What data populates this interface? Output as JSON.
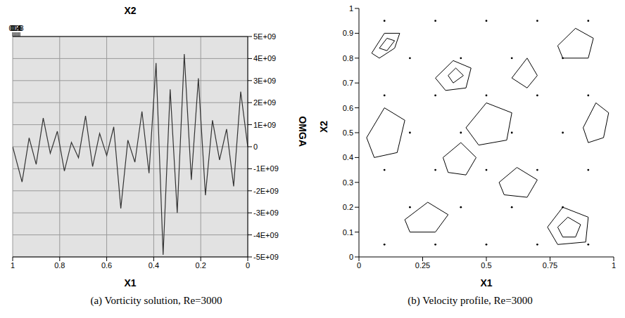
{
  "chart_data": [
    {
      "type": "line",
      "title": "(a) Vorticity solution, Re=3000",
      "x_label": "X1",
      "x2_label": "X2",
      "y_label": "OMGA",
      "xlim": [
        0,
        1
      ],
      "xticks": [
        0,
        0.2,
        0.4,
        0.6,
        0.8,
        1
      ],
      "x2lim": [
        0,
        1
      ],
      "x2ticks": [
        0,
        0.2,
        0.4,
        0.6,
        0.8,
        1
      ],
      "ylim": [
        -5000000000,
        5000000000
      ],
      "yticks": [
        {
          "value": -5000000000,
          "label": "-5E+09"
        },
        {
          "value": -4000000000,
          "label": "-4E+09"
        },
        {
          "value": -3000000000,
          "label": "-3E+09"
        },
        {
          "value": -2000000000,
          "label": "-2E+09"
        },
        {
          "value": -1000000000,
          "label": "-1E+09"
        },
        0,
        {
          "value": 1000000000,
          "label": "1E+09"
        },
        {
          "value": 2000000000,
          "label": "2E+09"
        },
        {
          "value": 3000000000,
          "label": "3E+09"
        },
        {
          "value": 4000000000,
          "label": "4E+09"
        },
        {
          "value": 5000000000,
          "label": "5E+09"
        }
      ],
      "x": [
        0,
        0.03,
        0.06,
        0.09,
        0.12,
        0.15,
        0.18,
        0.21,
        0.24,
        0.27,
        0.3,
        0.33,
        0.36,
        0.39,
        0.42,
        0.45,
        0.48,
        0.51,
        0.54,
        0.57,
        0.6,
        0.63,
        0.66,
        0.69,
        0.72,
        0.75,
        0.78,
        0.81,
        0.84,
        0.87,
        0.9,
        0.93,
        0.96,
        1
      ],
      "values": [
        0,
        2500000000,
        -1800000000,
        800000000,
        -600000000,
        1200000000,
        -2200000000,
        3100000000,
        -1500000000,
        4200000000,
        -3000000000,
        2600000000,
        -4900000000,
        3800000000,
        -1200000000,
        1600000000,
        -700000000,
        300000000,
        -2800000000,
        900000000,
        -400000000,
        600000000,
        -900000000,
        1400000000,
        -500000000,
        200000000,
        -1100000000,
        700000000,
        -300000000,
        1300000000,
        -800000000,
        400000000,
        -1600000000,
        0
      ],
      "color": "#333333",
      "grid": true
    },
    {
      "type": "scatter",
      "title": "(b) Velocity profile, Re=3000",
      "x_label": "X1",
      "y_label": "X2",
      "xlim": [
        0,
        1
      ],
      "xticks": [
        0,
        0.25,
        0.5,
        0.75,
        1
      ],
      "ylim": [
        0,
        1
      ],
      "yticks": [
        0,
        0.1,
        0.2,
        0.3,
        0.4,
        0.5,
        0.6,
        0.7,
        0.8,
        0.9,
        1
      ],
      "grid": false,
      "series": [
        {
          "type": "line",
          "color": "#000000",
          "x": [
            0.05,
            0.1,
            0.16,
            0.14,
            0.08,
            0.05
          ],
          "values": [
            0.82,
            0.9,
            0.9,
            0.84,
            0.8,
            0.82
          ]
        },
        {
          "type": "line",
          "color": "#000000",
          "x": [
            0.08,
            0.11,
            0.14,
            0.11,
            0.08
          ],
          "values": [
            0.84,
            0.88,
            0.87,
            0.83,
            0.84
          ]
        },
        {
          "type": "line",
          "color": "#000000",
          "x": [
            0.3,
            0.37,
            0.44,
            0.42,
            0.34,
            0.3
          ],
          "values": [
            0.72,
            0.79,
            0.76,
            0.68,
            0.67,
            0.72
          ]
        },
        {
          "type": "line",
          "color": "#000000",
          "x": [
            0.35,
            0.38,
            0.41,
            0.37,
            0.35
          ],
          "values": [
            0.73,
            0.76,
            0.73,
            0.7,
            0.73
          ]
        },
        {
          "type": "line",
          "color": "#000000",
          "x": [
            0.74,
            0.8,
            0.9,
            0.89,
            0.78,
            0.74
          ],
          "values": [
            0.12,
            0.2,
            0.16,
            0.06,
            0.05,
            0.12
          ]
        },
        {
          "type": "line",
          "color": "#000000",
          "x": [
            0.78,
            0.82,
            0.87,
            0.85,
            0.8,
            0.78
          ],
          "values": [
            0.12,
            0.16,
            0.13,
            0.08,
            0.08,
            0.12
          ]
        },
        {
          "type": "line",
          "color": "#000000",
          "x": [
            0.88,
            0.93,
            0.98,
            0.96,
            0.9,
            0.88
          ],
          "values": [
            0.52,
            0.62,
            0.58,
            0.48,
            0.46,
            0.52
          ]
        },
        {
          "type": "line",
          "color": "#000000",
          "x": [
            0.03,
            0.1,
            0.18,
            0.15,
            0.06,
            0.03
          ],
          "values": [
            0.48,
            0.6,
            0.55,
            0.42,
            0.4,
            0.48
          ]
        },
        {
          "type": "line",
          "color": "#000000",
          "x": [
            0.42,
            0.5,
            0.6,
            0.58,
            0.47,
            0.42
          ],
          "values": [
            0.52,
            0.62,
            0.58,
            0.47,
            0.45,
            0.52
          ]
        },
        {
          "type": "line",
          "color": "#000000",
          "x": [
            0.6,
            0.66,
            0.7,
            0.66,
            0.6
          ],
          "values": [
            0.72,
            0.8,
            0.73,
            0.68,
            0.72
          ]
        },
        {
          "type": "line",
          "color": "#000000",
          "x": [
            0.33,
            0.4,
            0.46,
            0.42,
            0.35,
            0.33
          ],
          "values": [
            0.4,
            0.46,
            0.4,
            0.33,
            0.34,
            0.4
          ]
        },
        {
          "type": "line",
          "color": "#000000",
          "x": [
            0.18,
            0.27,
            0.35,
            0.3,
            0.2,
            0.18
          ],
          "values": [
            0.15,
            0.22,
            0.17,
            0.1,
            0.1,
            0.15
          ]
        },
        {
          "type": "line",
          "color": "#000000",
          "x": [
            0.55,
            0.62,
            0.7,
            0.66,
            0.57,
            0.55
          ],
          "values": [
            0.3,
            0.36,
            0.31,
            0.24,
            0.25,
            0.3
          ]
        },
        {
          "type": "line",
          "color": "#000000",
          "x": [
            0.78,
            0.85,
            0.92,
            0.9,
            0.8,
            0.78
          ],
          "values": [
            0.85,
            0.92,
            0.88,
            0.8,
            0.8,
            0.85
          ]
        },
        {
          "type": "scatter",
          "marker": "dot",
          "color": "#000000",
          "x": [
            0.1,
            0.3,
            0.5,
            0.7,
            0.9,
            0.2,
            0.4,
            0.6,
            0.8,
            0.1,
            0.3,
            0.5,
            0.7,
            0.9,
            0.2,
            0.4,
            0.6,
            0.8,
            0.1,
            0.3,
            0.5,
            0.7,
            0.9,
            0.2,
            0.4,
            0.6,
            0.8,
            0.1,
            0.3,
            0.5,
            0.7,
            0.9
          ],
          "values": [
            0.95,
            0.95,
            0.95,
            0.95,
            0.95,
            0.8,
            0.8,
            0.8,
            0.8,
            0.65,
            0.65,
            0.65,
            0.65,
            0.65,
            0.5,
            0.5,
            0.5,
            0.5,
            0.35,
            0.35,
            0.35,
            0.35,
            0.35,
            0.2,
            0.2,
            0.2,
            0.2,
            0.05,
            0.05,
            0.05,
            0.05,
            0.05
          ]
        }
      ]
    }
  ]
}
